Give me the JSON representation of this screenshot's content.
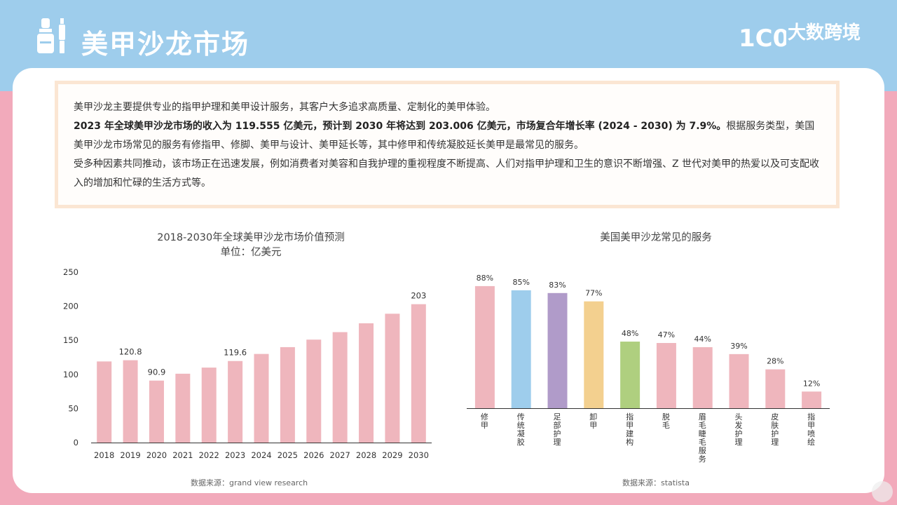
{
  "header": {
    "title": "美甲沙龙市场",
    "logo_text": "大数跨境",
    "logo_mark": "1C00"
  },
  "intro": {
    "line1": "美甲沙龙主要提供专业的指甲护理和美甲设计服务，其客户大多追求高质量、定制化的美甲体验。",
    "line2_bold": "2023 年全球美甲沙龙市场的收入为 119.555 亿美元，预计到 2030 年将达到 203.006 亿美元，市场复合年增长率 (2024 - 2030) 为 7.9%。",
    "line2_rest": "根据服务类型，美国美甲沙龙市场常见的服务有修指甲、修脚、美甲与设计、美甲延长等，其中修甲和传统凝胶延长美甲是最常见的服务。",
    "line3": "受多种因素共同推动，该市场正在迅速发展，例如消费者对美容和自我护理的重视程度不断提高、人们对指甲护理和卫生的意识不断增强、Z 世代对美甲的热爱以及可支配收入的增加和忙碌的生活方式等。"
  },
  "chart_data": [
    {
      "type": "bar",
      "title": "2018-2030年全球美甲沙龙市场价值预测",
      "subtitle": "单位：亿美元",
      "source": "数据来源：grand view research",
      "categories": [
        "2018",
        "2019",
        "2020",
        "2021",
        "2022",
        "2023",
        "2024",
        "2025",
        "2026",
        "2027",
        "2028",
        "2029",
        "2030"
      ],
      "values": [
        119,
        120.8,
        90.9,
        101,
        110,
        119.6,
        130,
        140,
        151,
        162,
        175,
        189,
        203
      ],
      "data_labels": [
        "",
        "120.8",
        "90.9",
        "",
        "",
        "119.6",
        "",
        "",
        "",
        "",
        "",
        "",
        "203"
      ],
      "yticks": [
        "0",
        "50",
        "100",
        "150",
        "200",
        "250"
      ],
      "ylim": [
        0,
        250
      ],
      "color": "#efb6bd",
      "grid": false
    },
    {
      "type": "bar",
      "title": "美国美甲沙龙常见的服务",
      "source": "数据来源：statista",
      "categories": [
        "修甲",
        "传统凝胶",
        "足部护理",
        "卸甲",
        "指甲建构",
        "脱毛",
        "眉毛睫毛服务",
        "头发护理",
        "皮肤护理",
        "指甲喷绘"
      ],
      "values": [
        88,
        85,
        83,
        77,
        48,
        47,
        44,
        39,
        28,
        12
      ],
      "data_labels": [
        "88%",
        "85%",
        "83%",
        "77%",
        "48%",
        "47%",
        "44%",
        "39%",
        "28%",
        "12%"
      ],
      "colors": [
        "#efb6bd",
        "#9ecdec",
        "#b09bc9",
        "#f3d08f",
        "#afcf7f",
        "#efb6bd",
        "#efb6bd",
        "#efb6bd",
        "#efb6bd",
        "#efb6bd"
      ],
      "ylim": [
        0,
        100
      ],
      "grid": false
    }
  ]
}
